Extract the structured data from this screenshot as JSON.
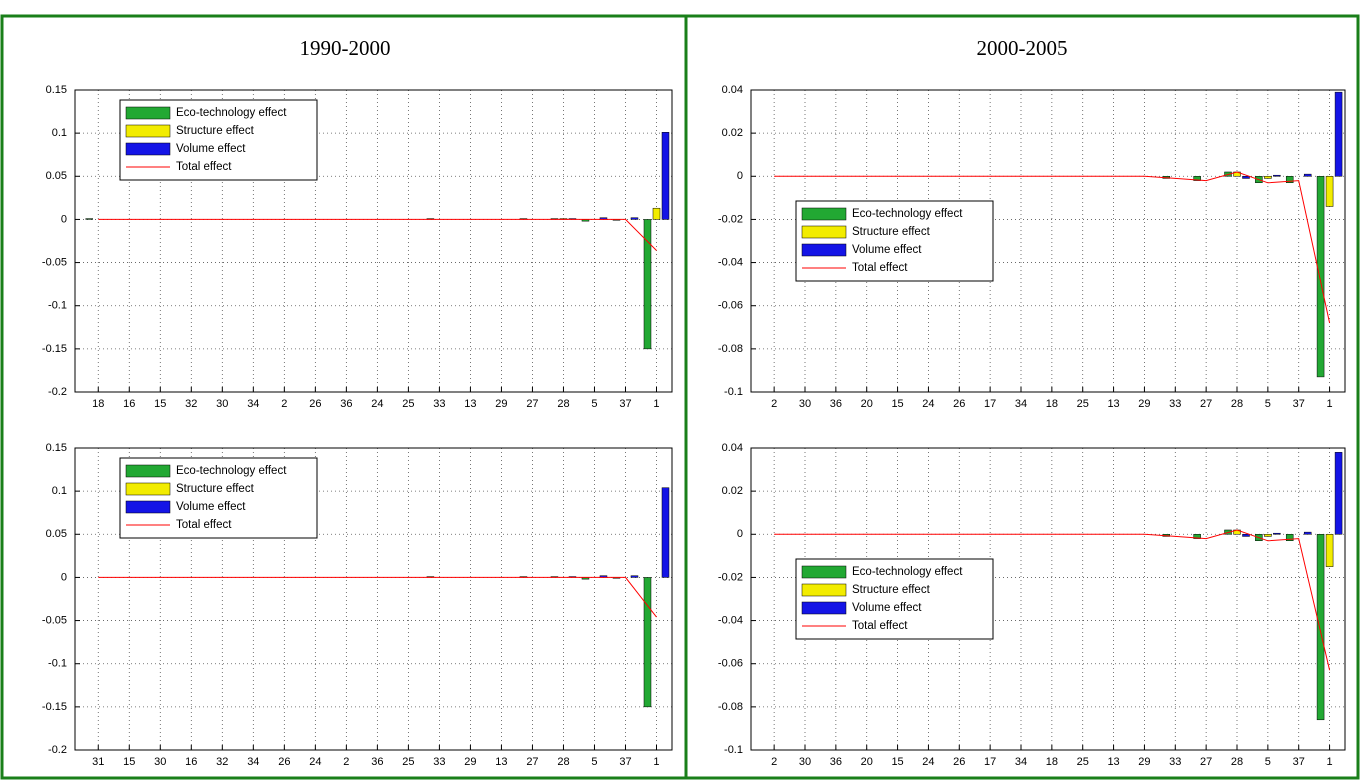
{
  "panel_titles": [
    "1990-2000",
    "2000-2005"
  ],
  "chart_data": [
    {
      "type": "bar",
      "legend": "upper left",
      "grid": true,
      "categories": [
        "18",
        "16",
        "15",
        "32",
        "30",
        "34",
        "2",
        "26",
        "36",
        "24",
        "25",
        "33",
        "13",
        "29",
        "27",
        "28",
        "5",
        "37",
        "1"
      ],
      "ylim": [
        -0.2,
        0.15
      ],
      "yticks": [
        -0.2,
        -0.15,
        -0.1,
        -0.05,
        0,
        0.05,
        0.1,
        0.15
      ],
      "series": [
        {
          "name": "Eco-technology effect",
          "color": "#22a833",
          "values": [
            0.001,
            0,
            0,
            0,
            0,
            0,
            0,
            0,
            0,
            0,
            0,
            0.001,
            0,
            0,
            0.001,
            0.001,
            -0.002,
            -0.001,
            -0.15
          ]
        },
        {
          "name": "Structure effect",
          "color": "#f2ec00",
          "values": [
            0,
            0,
            0,
            0,
            0,
            0,
            0,
            0,
            0,
            0,
            0,
            0,
            0,
            0,
            0,
            0.001,
            0,
            0,
            0.013
          ]
        },
        {
          "name": "Volume effect",
          "color": "#1414e6",
          "values": [
            0,
            0,
            0,
            0,
            0,
            0,
            0,
            0,
            0,
            0,
            0,
            0,
            0,
            0,
            0,
            0.001,
            0.002,
            0.002,
            0.101
          ]
        },
        {
          "name": "Total effect",
          "type": "line",
          "color": "#ff0000",
          "values": [
            0,
            0,
            0,
            0,
            0,
            0,
            0,
            0,
            0,
            0,
            0,
            0,
            0,
            0,
            0,
            0,
            0,
            0,
            -0.036
          ]
        }
      ]
    },
    {
      "type": "bar",
      "legend": "center left",
      "grid": true,
      "categories": [
        "2",
        "30",
        "36",
        "20",
        "15",
        "24",
        "26",
        "17",
        "34",
        "18",
        "25",
        "13",
        "29",
        "33",
        "27",
        "28",
        "5",
        "37",
        "1"
      ],
      "ylim": [
        -0.1,
        0.04
      ],
      "yticks": [
        -0.1,
        -0.08,
        -0.06,
        -0.04,
        -0.02,
        0,
        0.02,
        0.04
      ],
      "series": [
        {
          "name": "Eco-technology effect",
          "color": "#22a833",
          "values": [
            0,
            0,
            0,
            0,
            0,
            0,
            0,
            0,
            0,
            0,
            0,
            0,
            0,
            -0.001,
            -0.002,
            0.002,
            -0.003,
            -0.003,
            -0.093
          ]
        },
        {
          "name": "Structure effect",
          "color": "#f2ec00",
          "values": [
            0,
            0,
            0,
            0,
            0,
            0,
            0,
            0,
            0,
            0,
            0,
            0,
            0,
            0,
            0,
            0.002,
            -0.001,
            0,
            -0.014
          ]
        },
        {
          "name": "Volume effect",
          "color": "#1414e6",
          "values": [
            0,
            0,
            0,
            0,
            0,
            0,
            0,
            0,
            0,
            0,
            0,
            0,
            0,
            0,
            0,
            -0.001,
            0.0005,
            0.001,
            0.039
          ]
        },
        {
          "name": "Total effect",
          "type": "line",
          "color": "#ff0000",
          "values": [
            0,
            0,
            0,
            0,
            0,
            0,
            0,
            0,
            0,
            0,
            0,
            0,
            0,
            -0.001,
            -0.002,
            0.002,
            -0.003,
            -0.002,
            -0.068
          ]
        }
      ]
    },
    {
      "type": "bar",
      "legend": "upper left",
      "grid": true,
      "categories": [
        "31",
        "15",
        "30",
        "16",
        "32",
        "34",
        "26",
        "24",
        "2",
        "36",
        "25",
        "33",
        "29",
        "13",
        "27",
        "28",
        "5",
        "37",
        "1"
      ],
      "ylim": [
        -0.2,
        0.15
      ],
      "yticks": [
        -0.2,
        -0.15,
        -0.1,
        -0.05,
        0,
        0.05,
        0.1,
        0.15
      ],
      "series": [
        {
          "name": "Eco-technology effect",
          "color": "#22a833",
          "values": [
            0,
            0,
            0,
            0,
            0,
            0,
            0,
            0,
            0,
            0,
            0,
            0.001,
            0,
            0,
            0.001,
            0.001,
            -0.002,
            -0.001,
            -0.15
          ]
        },
        {
          "name": "Structure effect",
          "color": "#f2ec00",
          "values": [
            0,
            0,
            0,
            0,
            0,
            0,
            0,
            0,
            0,
            0,
            0,
            0,
            0,
            0,
            0,
            0,
            0,
            0,
            0
          ]
        },
        {
          "name": "Volume effect",
          "color": "#1414e6",
          "values": [
            0,
            0,
            0,
            0,
            0,
            0,
            0,
            0,
            0,
            0,
            0,
            0,
            0,
            0,
            0,
            0.001,
            0.002,
            0.002,
            0.104
          ]
        },
        {
          "name": "Total effect",
          "type": "line",
          "color": "#ff0000",
          "values": [
            0,
            0,
            0,
            0,
            0,
            0,
            0,
            0,
            0,
            0,
            0,
            0,
            0,
            0,
            0,
            0,
            0,
            0,
            -0.046
          ]
        }
      ]
    },
    {
      "type": "bar",
      "legend": "center left",
      "grid": true,
      "categories": [
        "2",
        "30",
        "36",
        "20",
        "15",
        "24",
        "26",
        "17",
        "34",
        "18",
        "25",
        "13",
        "29",
        "33",
        "27",
        "28",
        "5",
        "37",
        "1"
      ],
      "ylim": [
        -0.1,
        0.04
      ],
      "yticks": [
        -0.1,
        -0.08,
        -0.06,
        -0.04,
        -0.02,
        0,
        0.02,
        0.04
      ],
      "series": [
        {
          "name": "Eco-technology effect",
          "color": "#22a833",
          "values": [
            0,
            0,
            0,
            0,
            0,
            0,
            0,
            0,
            0,
            0,
            0,
            0,
            0,
            -0.001,
            -0.002,
            0.002,
            -0.003,
            -0.003,
            -0.086
          ]
        },
        {
          "name": "Structure effect",
          "color": "#f2ec00",
          "values": [
            0,
            0,
            0,
            0,
            0,
            0,
            0,
            0,
            0,
            0,
            0,
            0,
            0,
            0,
            0,
            0.002,
            -0.001,
            0,
            -0.015
          ]
        },
        {
          "name": "Volume effect",
          "color": "#1414e6",
          "values": [
            0,
            0,
            0,
            0,
            0,
            0,
            0,
            0,
            0,
            0,
            0,
            0,
            0,
            0,
            0,
            -0.001,
            0.0005,
            0.001,
            0.038
          ]
        },
        {
          "name": "Total effect",
          "type": "line",
          "color": "#ff0000",
          "values": [
            0,
            0,
            0,
            0,
            0,
            0,
            0,
            0,
            0,
            0,
            0,
            0,
            0,
            -0.001,
            -0.002,
            0.002,
            -0.003,
            -0.002,
            -0.063
          ]
        }
      ]
    }
  ]
}
